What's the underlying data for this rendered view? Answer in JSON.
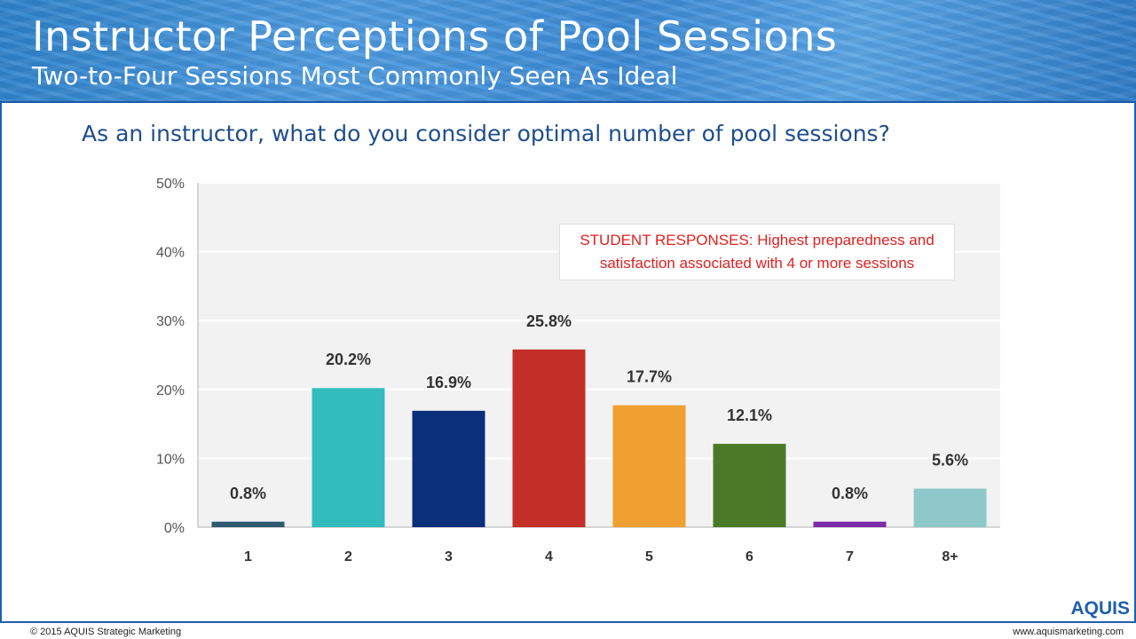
{
  "header": {
    "title": "Instructor Perceptions of Pool Sessions",
    "subtitle": "Two-to-Four Sessions Most Commonly Seen As Ideal"
  },
  "question": "As an instructor, what do you consider optimal number of pool sessions?",
  "callout": {
    "line1": "STUDENT RESPONSES: Highest preparedness and",
    "line2": "satisfaction associated with 4 or more sessions"
  },
  "footer": {
    "copyright": "© 2015 AQUIS Strategic Marketing",
    "website": "www.aquismarketing.com",
    "logo_text": "AQUIS"
  },
  "chart_data": {
    "type": "bar",
    "title": "",
    "xlabel": "",
    "ylabel": "",
    "categories": [
      "1",
      "2",
      "3",
      "4",
      "5",
      "6",
      "7",
      "8+"
    ],
    "values": [
      0.8,
      20.2,
      16.9,
      25.8,
      17.7,
      12.1,
      0.8,
      5.6
    ],
    "value_labels": [
      "0.8%",
      "20.2%",
      "16.9%",
      "25.8%",
      "17.7%",
      "12.1%",
      "0.8%",
      "5.6%"
    ],
    "colors": [
      "#2f5a72",
      "#33bcbd",
      "#0b2f7a",
      "#c32e26",
      "#f0a030",
      "#4a7a28",
      "#7b2aa8",
      "#8ec8c9"
    ],
    "ylim": [
      0,
      50
    ],
    "yticks": [
      0,
      10,
      20,
      30,
      40,
      50
    ],
    "ytick_labels": [
      "0%",
      "10%",
      "20%",
      "30%",
      "40%",
      "50%"
    ],
    "grid": true,
    "plot_background": "#f2f2f2"
  }
}
